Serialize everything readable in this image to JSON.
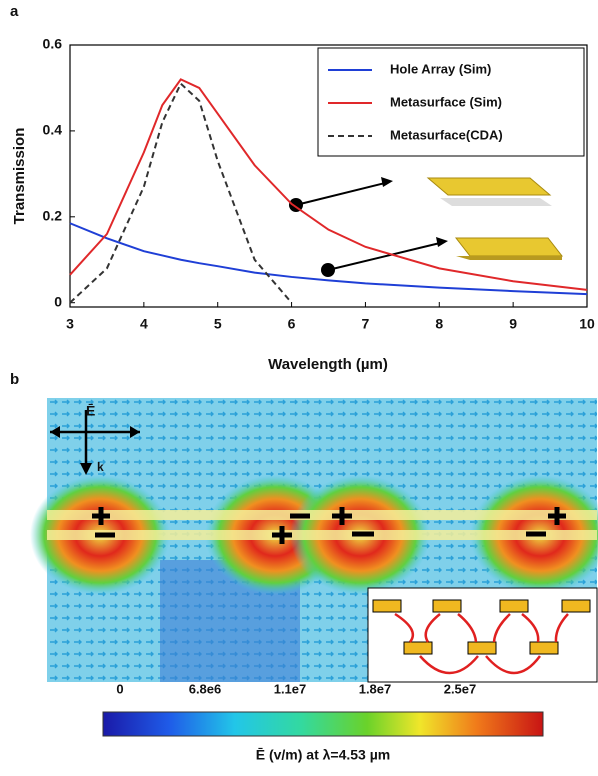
{
  "chart_data": {
    "type": "line",
    "panel_label": "a",
    "x_label": "Wavelength (µm)",
    "y_label": "Transmission",
    "x": [
      3,
      3.5,
      4,
      4.25,
      4.5,
      4.75,
      5,
      5.5,
      6,
      6.5,
      7,
      8,
      9,
      10
    ],
    "series": [
      {
        "name": "Hole Array (Sim)",
        "color": "#1f3fd6",
        "dash": false,
        "values": [
          0.185,
          0.15,
          0.12,
          0.11,
          0.1,
          0.092,
          0.085,
          0.07,
          0.06,
          0.052,
          0.045,
          0.035,
          0.027,
          0.02
        ]
      },
      {
        "name": "Metasurface (Sim)",
        "color": "#e0282a",
        "dash": false,
        "values": [
          0.065,
          0.16,
          0.35,
          0.46,
          0.52,
          0.5,
          0.44,
          0.32,
          0.23,
          0.17,
          0.13,
          0.08,
          0.05,
          0.03
        ]
      },
      {
        "name": "Metasurface(CDA)",
        "color": "#333333",
        "dash": true,
        "values": [
          0,
          0.08,
          0.27,
          0.42,
          0.51,
          0.47,
          0.33,
          0.1,
          0,
          null,
          null,
          null,
          null,
          null
        ]
      }
    ],
    "xlim": [
      3,
      10
    ],
    "xticks": [
      3,
      4,
      5,
      6,
      7,
      8,
      9,
      10
    ],
    "ylim": [
      -0.01,
      0.6
    ],
    "yticks": [
      0,
      0.2,
      0.4,
      0.6
    ],
    "legend": "upper right",
    "grid": false
  },
  "field_plot": {
    "panel_label": "b",
    "e_label": "Ē",
    "k_label": "k",
    "colorbar_ticks": [
      "0",
      "6.8e6",
      "1.1e7",
      "1.8e7",
      "2.5e7"
    ],
    "colorbar_label": "Ē (v/m)  at λ=4.53 µm"
  }
}
